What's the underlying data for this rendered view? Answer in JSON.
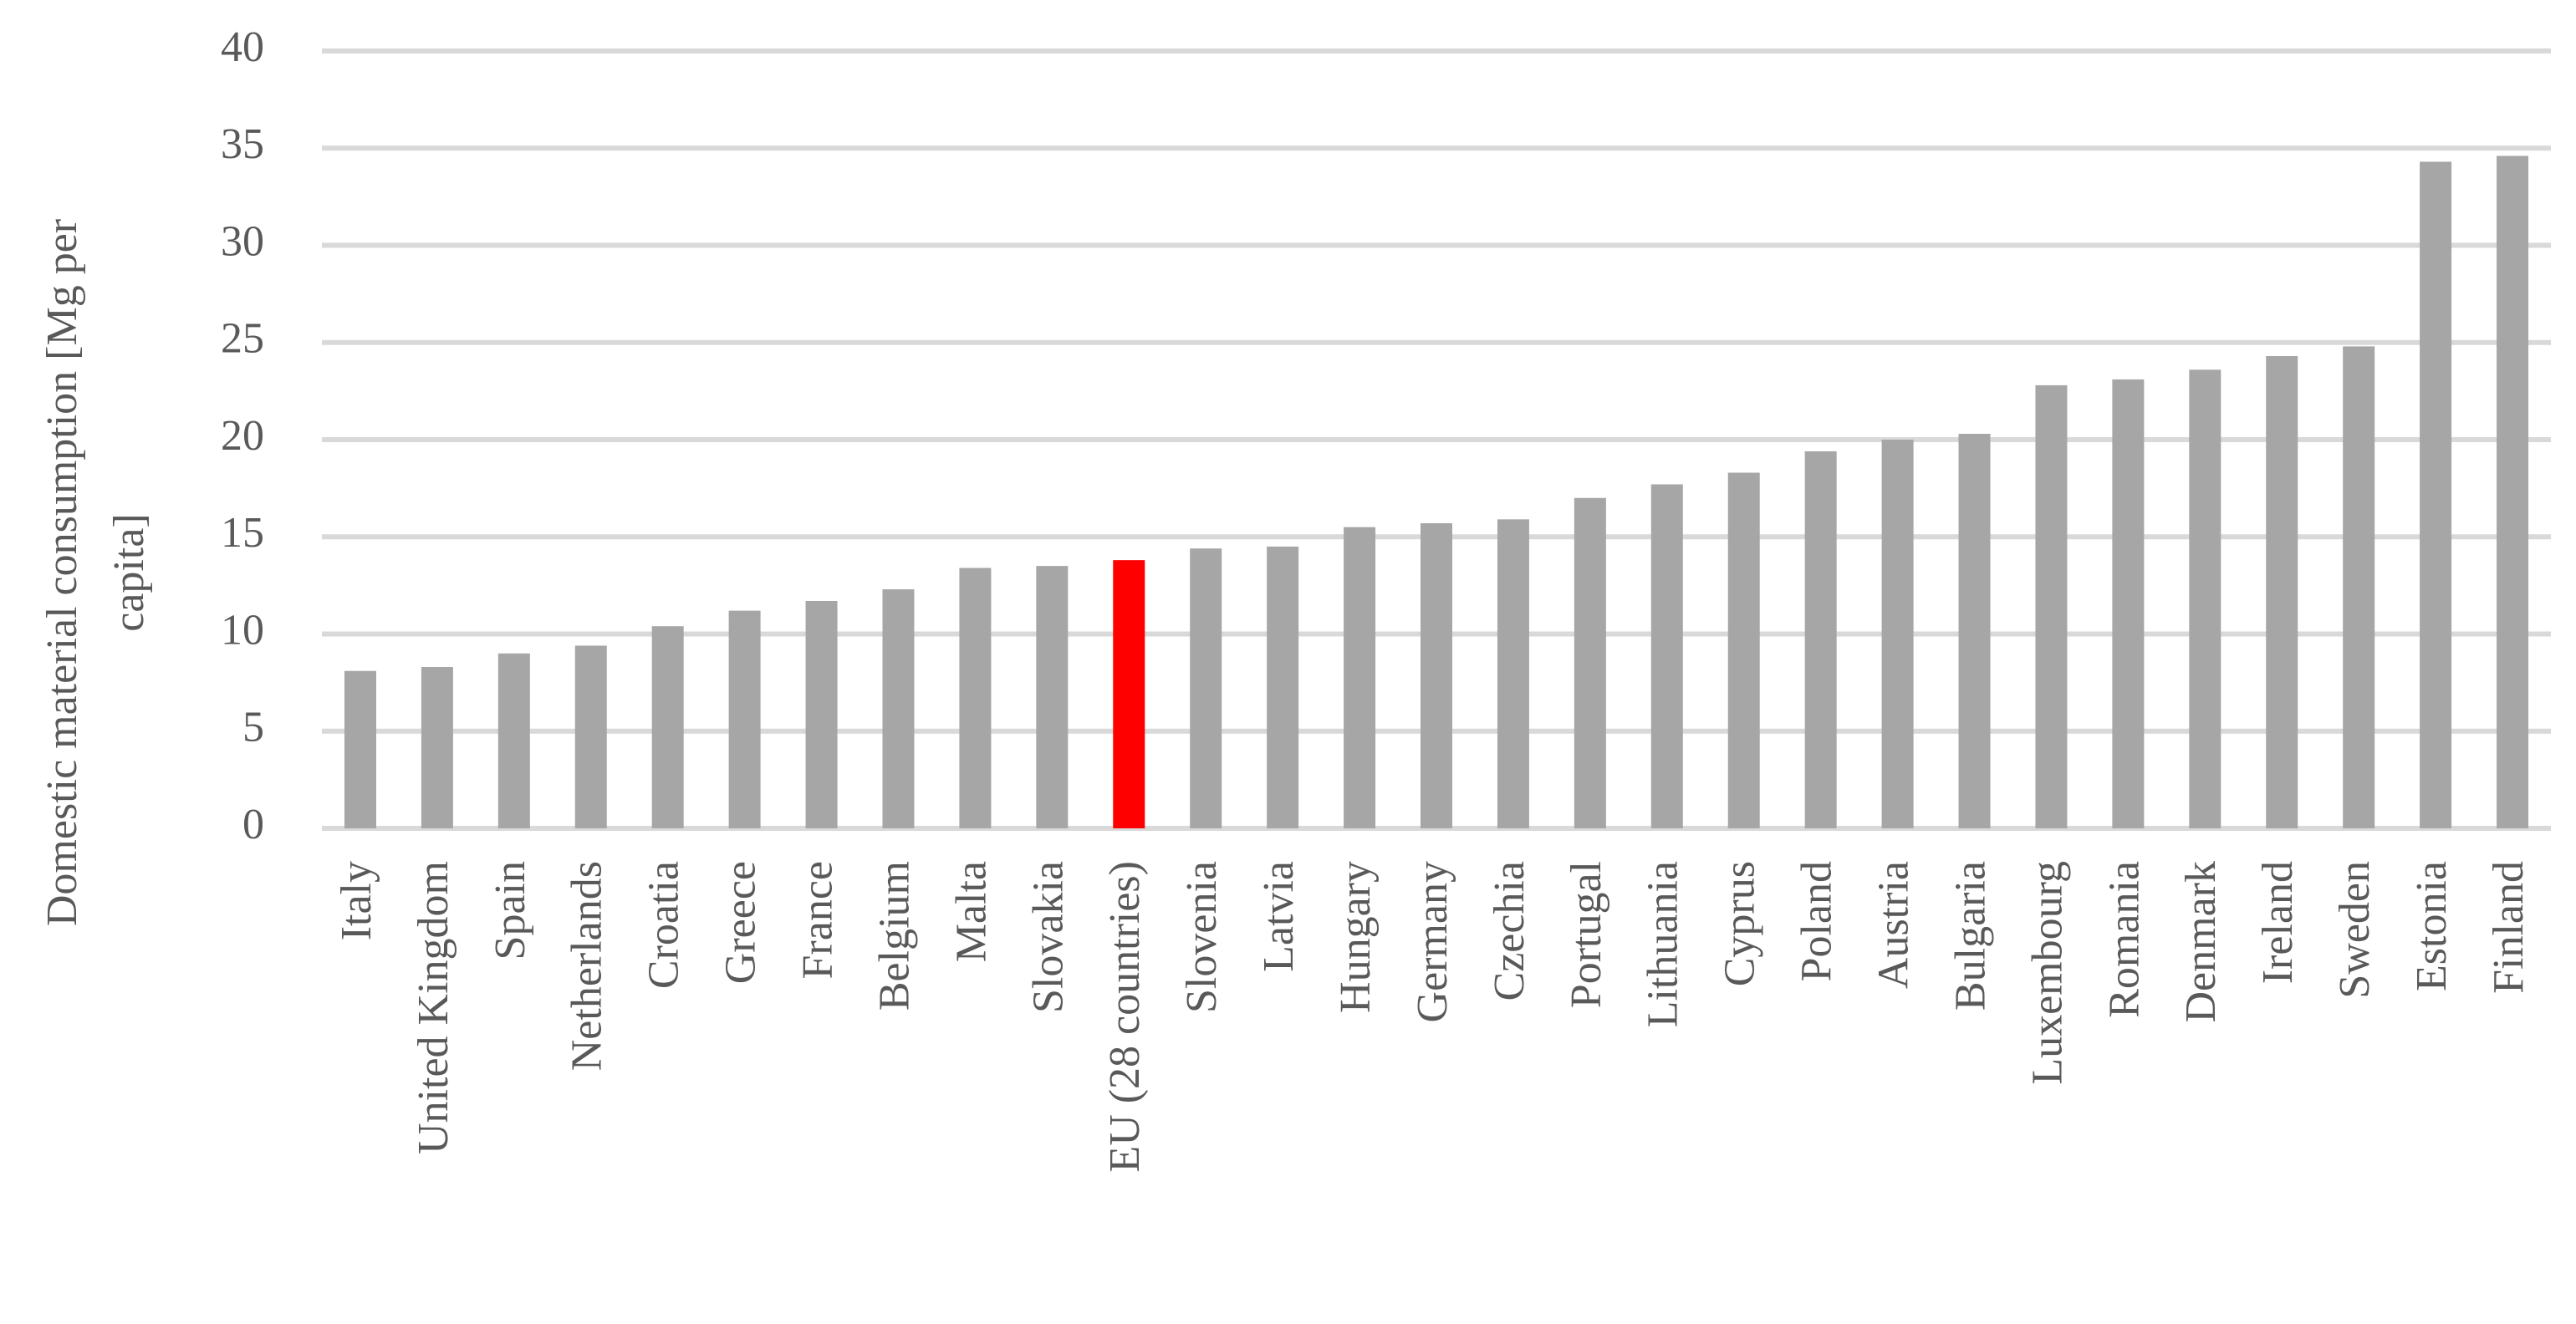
{
  "chart_data": {
    "type": "bar",
    "y_label": "Domestic material consumption [Mg per capita]",
    "categories": [
      "Italy",
      "United Kingdom",
      "Spain",
      "Netherlands",
      "Croatia",
      "Greece",
      "France",
      "Belgium",
      "Malta",
      "Slovakia",
      "EU (28 countries)",
      "Slovenia",
      "Latvia",
      "Hungary",
      "Germany",
      "Czechia",
      "Portugal",
      "Lithuania",
      "Cyprus",
      "Poland",
      "Austria",
      "Bulgaria",
      "Luxembourg",
      "Romania",
      "Denmark",
      "Ireland",
      "Sweden",
      "Estonia",
      "Finland"
    ],
    "values": [
      8.1,
      8.3,
      9.0,
      9.4,
      10.4,
      11.2,
      11.7,
      12.3,
      13.4,
      13.5,
      13.8,
      14.4,
      14.5,
      15.5,
      15.7,
      15.9,
      17.0,
      17.7,
      18.3,
      19.4,
      20.0,
      20.3,
      22.8,
      23.1,
      23.6,
      24.3,
      24.8,
      34.3,
      34.6
    ],
    "colors": [
      "#a6a6a6",
      "#a6a6a6",
      "#a6a6a6",
      "#a6a6a6",
      "#a6a6a6",
      "#a6a6a6",
      "#a6a6a6",
      "#a6a6a6",
      "#a6a6a6",
      "#a6a6a6",
      "#ff0000",
      "#a6a6a6",
      "#a6a6a6",
      "#a6a6a6",
      "#a6a6a6",
      "#a6a6a6",
      "#a6a6a6",
      "#a6a6a6",
      "#a6a6a6",
      "#a6a6a6",
      "#a6a6a6",
      "#a6a6a6",
      "#a6a6a6",
      "#a6a6a6",
      "#a6a6a6",
      "#a6a6a6",
      "#a6a6a6",
      "#a6a6a6",
      "#a6a6a6"
    ],
    "ylim": [
      0,
      40
    ],
    "yticks": [
      0,
      5,
      10,
      15,
      20,
      25,
      30,
      35,
      40
    ],
    "grid": true,
    "grid_color": "#d9d9d9"
  }
}
